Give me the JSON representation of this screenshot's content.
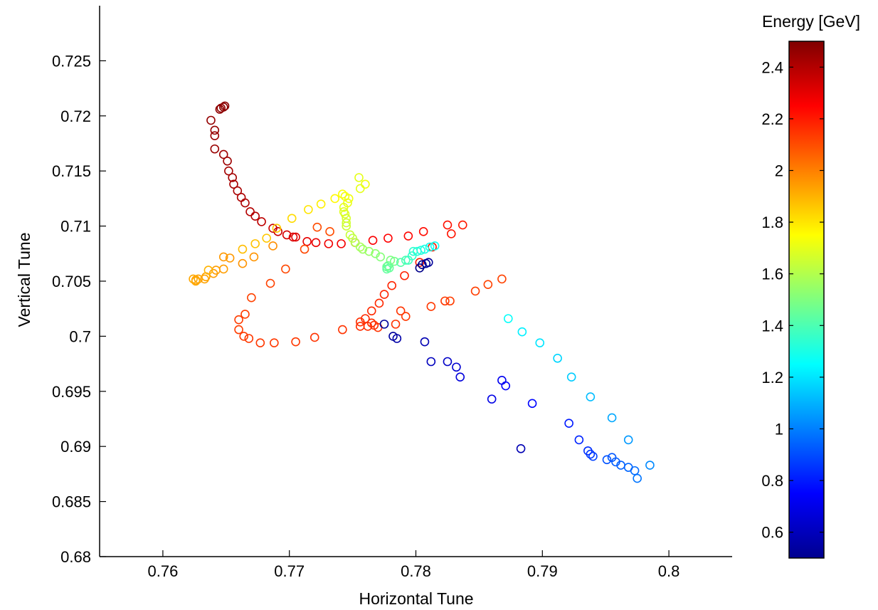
{
  "chart_data": {
    "type": "scatter",
    "title": "",
    "xlabel": "Horizontal Tune",
    "ylabel": "Vertical Tune",
    "xlim": [
      0.755,
      0.805
    ],
    "ylim": [
      0.68,
      0.73
    ],
    "x_ticks": [
      "0.76",
      "0.77",
      "0.78",
      "0.79",
      "0.8"
    ],
    "y_ticks": [
      "0.68",
      "0.685",
      "0.69",
      "0.695",
      "0.7",
      "0.705",
      "0.71",
      "0.715",
      "0.72",
      "0.725"
    ],
    "grid": false,
    "marker": "open-circle",
    "colorbar": {
      "label": "Energy [GeV]",
      "range": [
        0.5,
        2.5
      ],
      "ticks": [
        "0.6",
        "0.8",
        "1",
        "1.2",
        "1.4",
        "1.6",
        "1.8",
        "2",
        "2.2",
        "2.4"
      ],
      "colormap": "jet"
    },
    "series": [
      {
        "points": [
          [
            0.7649,
            0.7209
          ],
          [
            0.7648,
            0.7208
          ],
          [
            0.7646,
            0.7207
          ],
          [
            0.7645,
            0.7206
          ],
          [
            0.7638,
            0.7196
          ],
          [
            0.7641,
            0.7187
          ],
          [
            0.7641,
            0.7182
          ],
          [
            0.7641,
            0.717
          ],
          [
            0.7648,
            0.7165
          ],
          [
            0.7651,
            0.7159
          ],
          [
            0.7652,
            0.715
          ],
          [
            0.7655,
            0.7144
          ],
          [
            0.7656,
            0.7138
          ],
          [
            0.7659,
            0.7132
          ],
          [
            0.7662,
            0.7126
          ],
          [
            0.7665,
            0.7121
          ],
          [
            0.7669,
            0.7113
          ],
          [
            0.7673,
            0.7109
          ],
          [
            0.7678,
            0.7104
          ],
          [
            0.7687,
            0.7098
          ],
          [
            0.7691,
            0.7095
          ],
          [
            0.7698,
            0.7092
          ],
          [
            0.7703,
            0.709
          ],
          [
            0.7705,
            0.709
          ],
          [
            0.7714,
            0.7086
          ],
          [
            0.7721,
            0.7085
          ],
          [
            0.7731,
            0.7084
          ],
          [
            0.7741,
            0.7084
          ],
          [
            0.7752,
            0.7085
          ],
          [
            0.7766,
            0.7087
          ],
          [
            0.7778,
            0.7089
          ],
          [
            0.7794,
            0.7091
          ],
          [
            0.7806,
            0.7095
          ],
          [
            0.7825,
            0.7101
          ],
          [
            0.7828,
            0.7093
          ],
          [
            0.7837,
            0.7101
          ]
        ],
        "energy": [
          2.48,
          2.48,
          2.47,
          2.47,
          2.46,
          2.46,
          2.45,
          2.45,
          2.44,
          2.44,
          2.43,
          2.43,
          2.42,
          2.42,
          2.41,
          2.41,
          2.4,
          2.4,
          2.38,
          2.36,
          2.35,
          2.33,
          2.32,
          2.31,
          2.3,
          2.29,
          2.28,
          2.27,
          2.27,
          2.26,
          2.25,
          2.24,
          2.23,
          2.22,
          2.21,
          2.2
        ]
      },
      {
        "points": [
          [
            0.7813,
            0.7081
          ],
          [
            0.7803,
            0.7067
          ],
          [
            0.7791,
            0.7055
          ],
          [
            0.7781,
            0.7046
          ],
          [
            0.7775,
            0.7038
          ],
          [
            0.7771,
            0.703
          ],
          [
            0.7765,
            0.7023
          ],
          [
            0.776,
            0.7016
          ],
          [
            0.7756,
            0.7013
          ],
          [
            0.7756,
            0.7009
          ],
          [
            0.7762,
            0.7009
          ],
          [
            0.7767,
            0.701
          ],
          [
            0.7765,
            0.7012
          ],
          [
            0.777,
            0.7008
          ],
          [
            0.7742,
            0.7006
          ],
          [
            0.772,
            0.6999
          ],
          [
            0.7705,
            0.6995
          ],
          [
            0.7688,
            0.6994
          ],
          [
            0.7677,
            0.6994
          ],
          [
            0.7668,
            0.6998
          ],
          [
            0.7664,
            0.7
          ],
          [
            0.766,
            0.7006
          ],
          [
            0.766,
            0.7015
          ],
          [
            0.7665,
            0.702
          ],
          [
            0.767,
            0.7035
          ],
          [
            0.7685,
            0.7048
          ],
          [
            0.7697,
            0.7061
          ],
          [
            0.7712,
            0.7079
          ],
          [
            0.7722,
            0.7099
          ],
          [
            0.7732,
            0.7095
          ],
          [
            0.7784,
            0.7011
          ],
          [
            0.7788,
            0.7023
          ],
          [
            0.7792,
            0.7018
          ],
          [
            0.7812,
            0.7027
          ],
          [
            0.7823,
            0.7032
          ],
          [
            0.7827,
            0.7032
          ],
          [
            0.7847,
            0.7041
          ],
          [
            0.7857,
            0.7047
          ],
          [
            0.7868,
            0.7052
          ]
        ],
        "energy": [
          2.2,
          2.19,
          2.19,
          2.18,
          2.18,
          2.17,
          2.17,
          2.17,
          2.16,
          2.16,
          2.16,
          2.16,
          2.16,
          2.15,
          2.15,
          2.15,
          2.14,
          2.14,
          2.14,
          2.14,
          2.13,
          2.13,
          2.13,
          2.13,
          2.12,
          2.12,
          2.11,
          2.11,
          2.1,
          2.1,
          2.15,
          2.15,
          2.14,
          2.14,
          2.14,
          2.13,
          2.13,
          2.12,
          2.12
        ]
      },
      {
        "points": [
          [
            0.7687,
            0.7082
          ],
          [
            0.7672,
            0.7072
          ],
          [
            0.7663,
            0.7066
          ],
          [
            0.7653,
            0.7071
          ],
          [
            0.7648,
            0.7072
          ],
          [
            0.7648,
            0.7061
          ],
          [
            0.7642,
            0.706
          ],
          [
            0.764,
            0.7057
          ],
          [
            0.7634,
            0.7054
          ],
          [
            0.7633,
            0.7052
          ],
          [
            0.7628,
            0.7052
          ],
          [
            0.7626,
            0.7051
          ],
          [
            0.7626,
            0.705
          ],
          [
            0.7624,
            0.7052
          ],
          [
            0.7636,
            0.706
          ],
          [
            0.7663,
            0.7079
          ],
          [
            0.7673,
            0.7084
          ],
          [
            0.7682,
            0.7089
          ],
          [
            0.769,
            0.7098
          ],
          [
            0.7702,
            0.7107
          ],
          [
            0.7715,
            0.7115
          ],
          [
            0.7725,
            0.712
          ],
          [
            0.7736,
            0.7125
          ]
        ],
        "energy": [
          1.97,
          1.96,
          1.96,
          1.95,
          1.95,
          1.94,
          1.94,
          1.94,
          1.93,
          1.93,
          1.93,
          1.93,
          1.92,
          1.92,
          1.9,
          1.88,
          1.87,
          1.86,
          1.85,
          1.82,
          1.8,
          1.78,
          1.76
        ]
      },
      {
        "points": [
          [
            0.7742,
            0.7129
          ],
          [
            0.7744,
            0.7127
          ],
          [
            0.7747,
            0.7125
          ],
          [
            0.7746,
            0.7121
          ],
          [
            0.7743,
            0.7117
          ],
          [
            0.7743,
            0.7113
          ],
          [
            0.7744,
            0.7111
          ],
          [
            0.7745,
            0.7107
          ],
          [
            0.7745,
            0.7103
          ],
          [
            0.7745,
            0.71
          ],
          [
            0.7748,
            0.7092
          ],
          [
            0.775,
            0.7089
          ],
          [
            0.7752,
            0.7085
          ],
          [
            0.7756,
            0.7081
          ],
          [
            0.7758,
            0.7079
          ],
          [
            0.776,
            0.7138
          ],
          [
            0.7756,
            0.7134
          ],
          [
            0.7755,
            0.7144
          ]
        ],
        "energy": [
          1.74,
          1.73,
          1.72,
          1.71,
          1.7,
          1.69,
          1.68,
          1.67,
          1.66,
          1.65,
          1.64,
          1.62,
          1.6,
          1.58,
          1.56,
          1.72,
          1.7,
          1.7
        ]
      },
      {
        "points": [
          [
            0.7763,
            0.7077
          ],
          [
            0.7768,
            0.7075
          ],
          [
            0.7772,
            0.7072
          ],
          [
            0.778,
            0.7069
          ],
          [
            0.7783,
            0.7068
          ],
          [
            0.7778,
            0.7064
          ],
          [
            0.7777,
            0.7063
          ],
          [
            0.7779,
            0.7062
          ],
          [
            0.7777,
            0.7061
          ],
          [
            0.7788,
            0.7067
          ],
          [
            0.7792,
            0.7069
          ],
          [
            0.7794,
            0.7069
          ],
          [
            0.7797,
            0.7073
          ],
          [
            0.7798,
            0.7077
          ],
          [
            0.7801,
            0.7077
          ],
          [
            0.7804,
            0.7078
          ],
          [
            0.7807,
            0.7079
          ],
          [
            0.7811,
            0.7081
          ],
          [
            0.7815,
            0.7082
          ]
        ],
        "energy": [
          1.55,
          1.53,
          1.51,
          1.5,
          1.48,
          1.47,
          1.46,
          1.45,
          1.44,
          1.42,
          1.4,
          1.38,
          1.36,
          1.34,
          1.33,
          1.32,
          1.3,
          1.29,
          1.28
        ]
      },
      {
        "points": [
          [
            0.7873,
            0.7016
          ],
          [
            0.7884,
            0.7004
          ],
          [
            0.7898,
            0.6994
          ],
          [
            0.7912,
            0.698
          ],
          [
            0.7923,
            0.6963
          ],
          [
            0.7938,
            0.6945
          ],
          [
            0.7955,
            0.6926
          ],
          [
            0.7968,
            0.6906
          ],
          [
            0.7985,
            0.6883
          ],
          [
            0.7975,
            0.6871
          ],
          [
            0.7973,
            0.6878
          ],
          [
            0.7968,
            0.6881
          ],
          [
            0.7962,
            0.6883
          ],
          [
            0.7958,
            0.6886
          ],
          [
            0.7955,
            0.689
          ],
          [
            0.7951,
            0.6888
          ]
        ],
        "energy": [
          1.26,
          1.22,
          1.2,
          1.17,
          1.15,
          1.12,
          1.08,
          1.05,
          1.02,
          0.98,
          0.96,
          0.95,
          0.94,
          0.93,
          0.92,
          0.91
        ]
      },
      {
        "points": [
          [
            0.794,
            0.6891
          ],
          [
            0.7938,
            0.6893
          ],
          [
            0.7936,
            0.6896
          ],
          [
            0.7929,
            0.6906
          ],
          [
            0.7921,
            0.6921
          ],
          [
            0.7892,
            0.6939
          ],
          [
            0.7871,
            0.6955
          ],
          [
            0.7868,
            0.696
          ],
          [
            0.786,
            0.6943
          ],
          [
            0.7835,
            0.6963
          ],
          [
            0.7832,
            0.6972
          ],
          [
            0.7825,
            0.6977
          ],
          [
            0.7812,
            0.6977
          ],
          [
            0.7807,
            0.6995
          ],
          [
            0.7785,
            0.6998
          ],
          [
            0.7782,
            0.7
          ],
          [
            0.7775,
            0.7011
          ],
          [
            0.7883,
            0.6898
          ],
          [
            0.7805,
            0.7065
          ],
          [
            0.7808,
            0.7066
          ],
          [
            0.7803,
            0.7062
          ],
          [
            0.781,
            0.7067
          ]
        ],
        "energy": [
          0.88,
          0.86,
          0.84,
          0.82,
          0.8,
          0.76,
          0.74,
          0.72,
          0.7,
          0.68,
          0.66,
          0.64,
          0.62,
          0.6,
          0.58,
          0.56,
          0.55,
          0.6,
          0.53,
          0.54,
          0.52,
          0.55
        ]
      }
    ]
  }
}
